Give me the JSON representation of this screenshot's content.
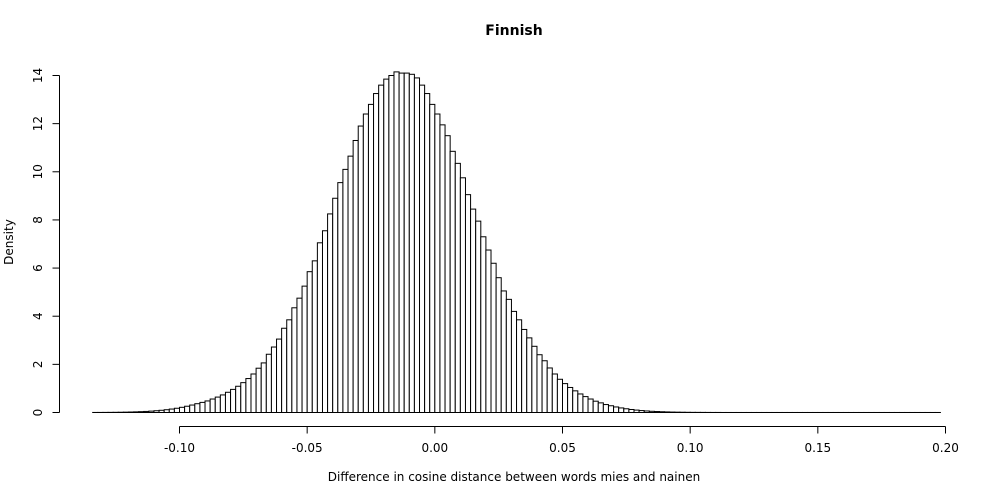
{
  "chart_data": {
    "type": "bar",
    "title": "Finnish",
    "xlabel": "Difference in cosine distance between words mies and nainen",
    "ylabel": "Density",
    "xlim": [
      -0.135,
      0.2
    ],
    "ylim": [
      0,
      14
    ],
    "xticks": [
      -0.1,
      -0.05,
      0.0,
      0.05,
      0.1,
      0.15,
      0.2
    ],
    "xtick_labels": [
      "-0.10",
      "-0.05",
      "0.00",
      "0.05",
      "0.10",
      "0.15",
      "0.20"
    ],
    "yticks": [
      0,
      2,
      4,
      6,
      8,
      10,
      12,
      14
    ],
    "ytick_labels": [
      "0",
      "2",
      "4",
      "6",
      "8",
      "10",
      "12",
      "14"
    ],
    "bin_start": -0.134,
    "bin_width": 0.002,
    "values": [
      0.002,
      0.003,
      0.004,
      0.006,
      0.008,
      0.011,
      0.015,
      0.02,
      0.026,
      0.034,
      0.044,
      0.057,
      0.073,
      0.092,
      0.115,
      0.143,
      0.176,
      0.215,
      0.26,
      0.31,
      0.365,
      0.42,
      0.48,
      0.56,
      0.64,
      0.73,
      0.84,
      0.96,
      1.09,
      1.24,
      1.41,
      1.6,
      1.84,
      2.06,
      2.42,
      2.72,
      3.05,
      3.5,
      3.85,
      4.35,
      4.75,
      5.25,
      5.85,
      6.3,
      7.05,
      7.55,
      8.25,
      8.9,
      9.55,
      10.1,
      10.65,
      11.3,
      11.9,
      12.4,
      12.8,
      13.25,
      13.6,
      13.85,
      14.0,
      14.15,
      14.1,
      14.1,
      14.05,
      13.9,
      13.6,
      13.25,
      12.8,
      12.4,
      11.95,
      11.5,
      10.85,
      10.35,
      9.75,
      9.05,
      8.45,
      7.95,
      7.3,
      6.75,
      6.2,
      5.6,
      5.05,
      4.7,
      4.2,
      3.85,
      3.45,
      3.1,
      2.75,
      2.4,
      2.15,
      1.85,
      1.6,
      1.38,
      1.2,
      1.04,
      0.9,
      0.77,
      0.66,
      0.56,
      0.47,
      0.4,
      0.33,
      0.28,
      0.23,
      0.19,
      0.155,
      0.125,
      0.1,
      0.08,
      0.064,
      0.05,
      0.04,
      0.031,
      0.024,
      0.018,
      0.014,
      0.011,
      0.008,
      0.006,
      0.005,
      0.004,
      0.003,
      0.002,
      0.002,
      0.001,
      0.001,
      0.001,
      0.001,
      0.001,
      0.001,
      0.001,
      0.001,
      0.001,
      0.001,
      0.001,
      0.001,
      0.001,
      0.001,
      0.001,
      0.001,
      0.001,
      0.001,
      0.001,
      0.001,
      0.001,
      0.001,
      0.001,
      0.001,
      0.001,
      0.001,
      0.001,
      0.001,
      0.001,
      0.001,
      0.001,
      0.001,
      0.001,
      0.001,
      0.001,
      0.001,
      0.001,
      0.001,
      0.001,
      0.001,
      0.001,
      0.001,
      0.001
    ]
  }
}
